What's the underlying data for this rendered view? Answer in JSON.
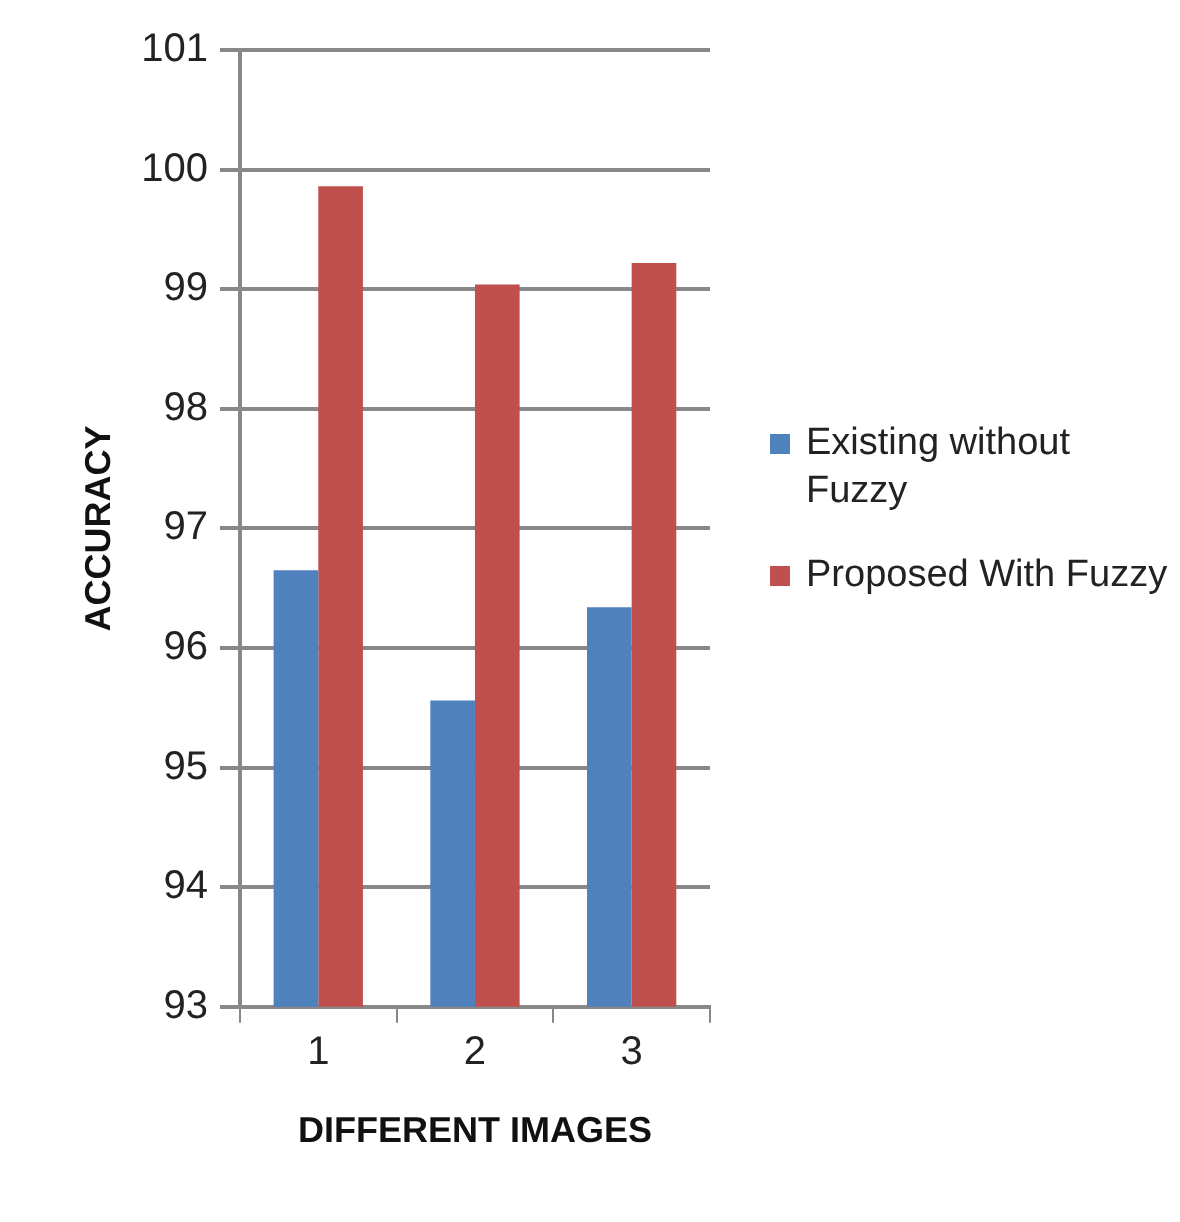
{
  "chart_data": {
    "type": "bar",
    "xlabel": "DIFFERENT IMAGES",
    "ylabel": "ACCURACY",
    "categories": [
      "1",
      "2",
      "3"
    ],
    "series": [
      {
        "name": "Existing without Fuzzy",
        "color": "#4f81bd",
        "values": [
          96.65,
          95.56,
          96.34
        ]
      },
      {
        "name": "Proposed With Fuzzy",
        "color": "#c0504d",
        "values": [
          99.86,
          99.04,
          99.22
        ]
      }
    ],
    "ylim": [
      93,
      101
    ],
    "yticks": [
      93,
      94,
      95,
      96,
      97,
      98,
      99,
      100,
      101
    ],
    "grid": "y",
    "legend": "right"
  }
}
